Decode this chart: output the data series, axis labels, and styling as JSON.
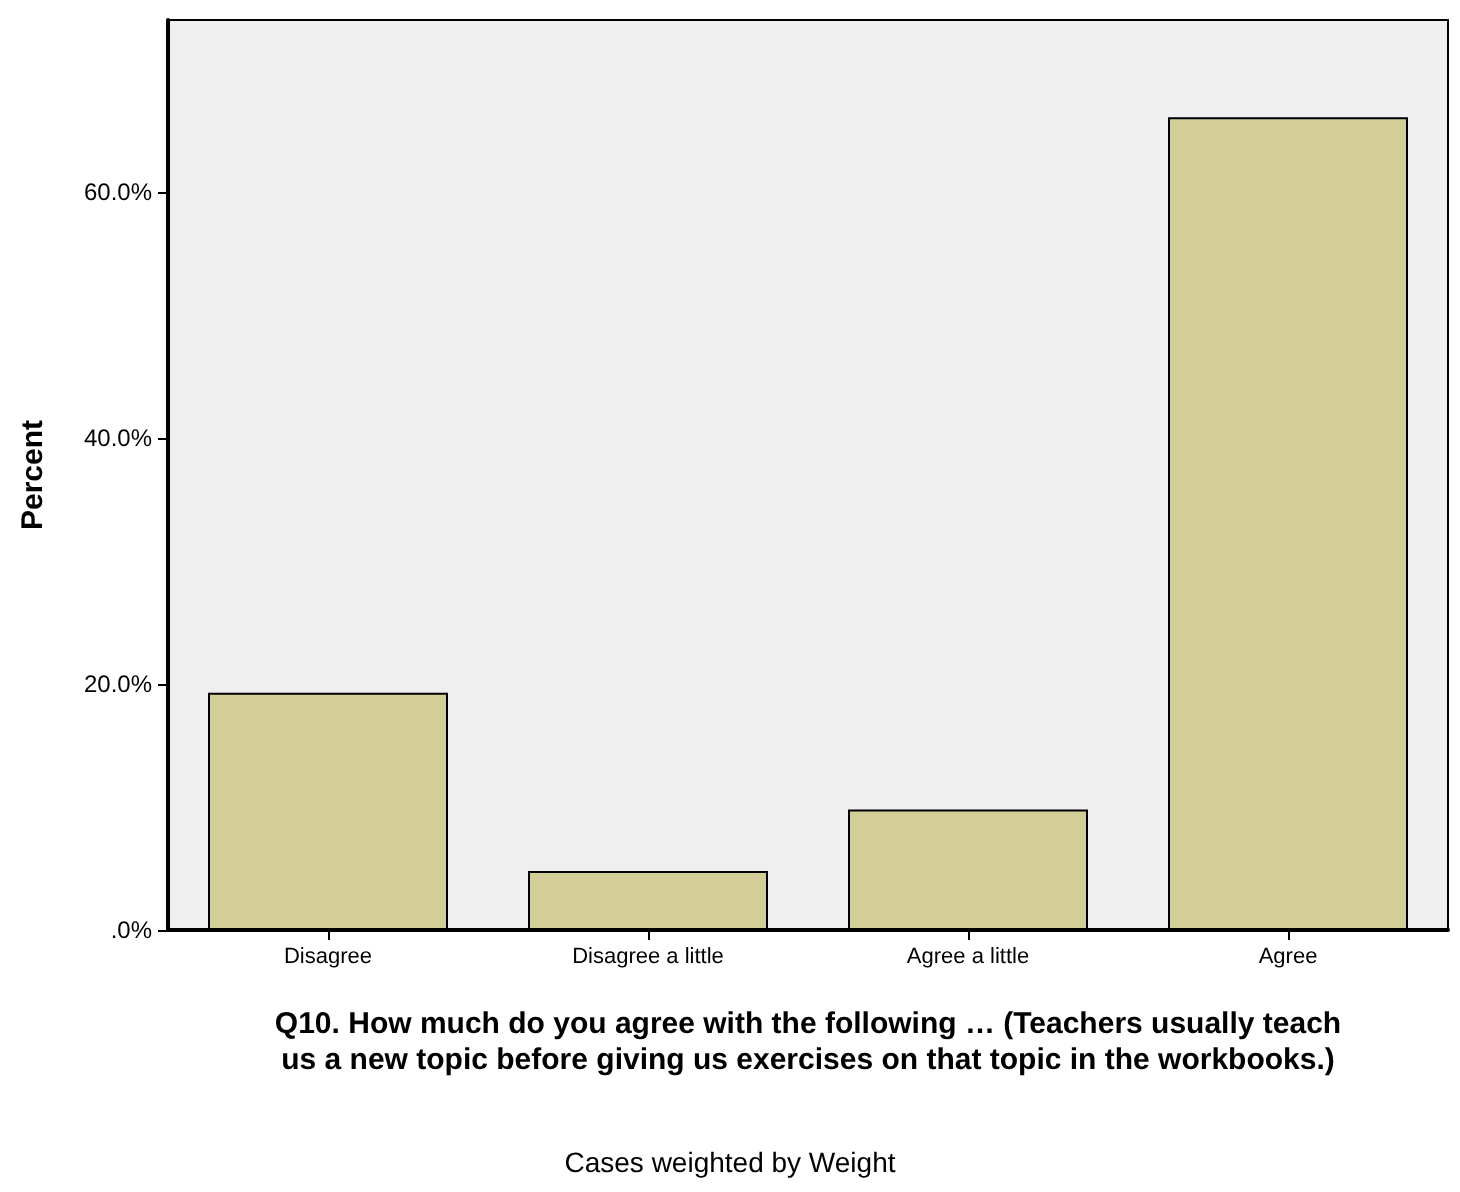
{
  "chart_data": {
    "type": "bar",
    "xlabel": "Q10. How much do you agree with the following … (Teachers usually teach\nus a new topic before giving us exercises on that topic in the workbooks.)",
    "ylabel": "Percent",
    "categories": [
      "Disagree",
      "Disagree a little",
      "Agree a little",
      "Agree"
    ],
    "values": [
      19.3,
      4.8,
      9.8,
      66.1
    ],
    "color": "#d3ce98",
    "ylim": [
      0,
      74
    ],
    "yticks": [
      {
        "value": 0,
        "label": ".0%"
      },
      {
        "value": 20,
        "label": "20.0%"
      },
      {
        "value": 40,
        "label": "40.0%"
      },
      {
        "value": 60,
        "label": "60.0%"
      }
    ],
    "grid": false,
    "annotations": [
      "Cases weighted by Weight"
    ]
  }
}
